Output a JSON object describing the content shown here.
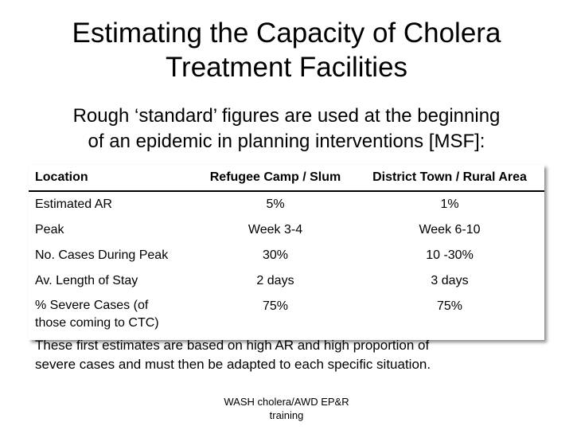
{
  "slide": {
    "title_line1": "Estimating the Capacity of Cholera",
    "title_line2": "Treatment Facilities",
    "subtitle_line1": "Rough ‘standard’ figures are used at the beginning",
    "subtitle_line2": "of an epidemic in planning interventions [MSF]:",
    "note_line1": "These first estimates are based on high AR and high proportion of",
    "note_line2": "severe cases and must then be adapted to each specific situation.",
    "footer_line1": "WASH cholera/AWD EP&R",
    "footer_line2": "training"
  },
  "table": {
    "headers": [
      "Location",
      "Refugee Camp / Slum",
      "District Town / Rural Area"
    ],
    "rows": [
      {
        "label": "Estimated AR",
        "camp": "5%",
        "town": "1%"
      },
      {
        "label": "Peak",
        "camp": "Week 3-4",
        "town": "Week 6-10"
      },
      {
        "label": "No. Cases During Peak",
        "camp": "30%",
        "town": "10 -30%"
      },
      {
        "label": "Av. Length of Stay",
        "camp": "2 days",
        "town": "3 days"
      },
      {
        "label_line1": "% Severe Cases (of",
        "label_line2": "those coming to CTC)",
        "camp": "75%",
        "town": "75%"
      }
    ]
  }
}
